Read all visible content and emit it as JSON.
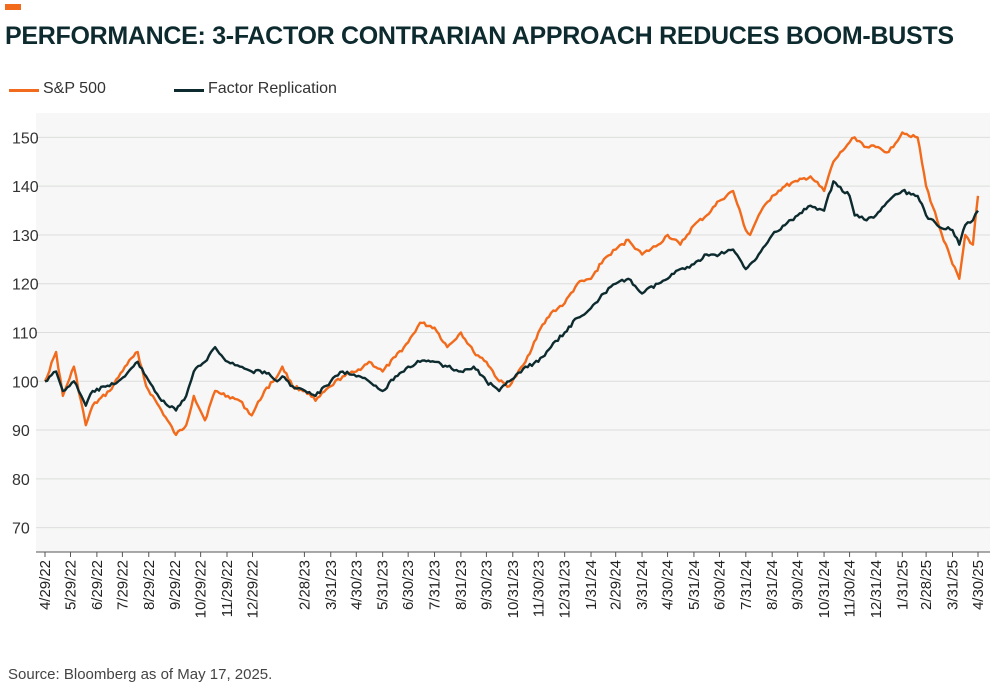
{
  "header": {
    "title": "PERFORMANCE: 3-FACTOR CONTRARIAN APPROACH REDUCES BOOM-BUSTS"
  },
  "footer": {
    "source": "Source: Bloomberg as of May 17, 2025."
  },
  "colors": {
    "accent": "#f26b1d",
    "sp500": "#f26b1d",
    "factor": "#0d2b2f",
    "plot_bg": "#f6f7f6",
    "grid": "#dcdedc"
  },
  "chart_data": {
    "type": "line",
    "title": "PERFORMANCE: 3-FACTOR CONTRARIAN APPROACH REDUCES BOOM-BUSTS",
    "xlabel": "",
    "ylabel": "",
    "ylim": [
      65,
      155
    ],
    "yticks": [
      70,
      80,
      90,
      100,
      110,
      120,
      130,
      140,
      150
    ],
    "xticks": [
      "4/29/22",
      "5/29/22",
      "6/29/22",
      "7/29/22",
      "8/29/22",
      "9/29/22",
      "10/29/22",
      "11/29/22",
      "12/29/22",
      "2/28/23",
      "3/31/23",
      "4/30/23",
      "5/31/23",
      "6/30/23",
      "7/31/23",
      "8/31/23",
      "9/30/23",
      "10/31/23",
      "11/30/23",
      "12/31/23",
      "1/31/24",
      "2/29/24",
      "3/31/24",
      "4/30/24",
      "5/31/24",
      "6/30/24",
      "7/31/24",
      "8/31/24",
      "9/30/24",
      "10/31/24",
      "11/30/24",
      "12/31/24",
      "1/31/25",
      "2/28/25",
      "3/31/25",
      "4/30/25"
    ],
    "legend_position": "top-left",
    "grid": "horizontal",
    "series": [
      {
        "name": "S&P 500",
        "color": "#f26b1d",
        "x": [
          "4/29/22",
          "5/12/22",
          "5/20/22",
          "6/2/22",
          "6/16/22",
          "6/24/22",
          "7/14/22",
          "8/1/22",
          "8/16/22",
          "8/26/22",
          "9/13/22",
          "9/30/22",
          "10/12/22",
          "10/21/22",
          "11/3/22",
          "11/15/22",
          "11/30/22",
          "12/14/22",
          "12/28/22",
          "1/12/23",
          "1/27/23",
          "2/2/23",
          "2/14/23",
          "3/1/23",
          "3/13/23",
          "3/31/23",
          "4/14/23",
          "4/30/23",
          "5/15/23",
          "5/31/23",
          "6/15/23",
          "6/30/23",
          "7/14/23",
          "7/31/23",
          "8/15/23",
          "8/31/23",
          "9/15/23",
          "9/30/23",
          "10/15/23",
          "10/27/23",
          "11/15/23",
          "11/30/23",
          "12/15/23",
          "12/31/23",
          "1/15/24",
          "1/31/24",
          "2/15/24",
          "2/29/24",
          "3/15/24",
          "3/31/24",
          "4/19/24",
          "4/30/24",
          "5/15/24",
          "5/31/24",
          "6/15/24",
          "6/30/24",
          "7/16/24",
          "7/31/24",
          "8/5/24",
          "8/15/24",
          "8/31/24",
          "9/15/24",
          "9/30/24",
          "10/15/24",
          "10/31/24",
          "11/11/24",
          "11/30/24",
          "12/6/24",
          "12/20/24",
          "12/31/24",
          "1/15/25",
          "1/31/25",
          "2/18/25",
          "2/28/25",
          "3/13/25",
          "3/31/25",
          "4/8/25",
          "4/15/25",
          "4/24/25",
          "4/30/25"
        ],
        "values": [
          100,
          106,
          97,
          103,
          91,
          95,
          98,
          103,
          106,
          99,
          94,
          89,
          91,
          97,
          92,
          98,
          97,
          96,
          93,
          98,
          101,
          103,
          99,
          98,
          96,
          99,
          101,
          102,
          104,
          102,
          105,
          108,
          112,
          111,
          107,
          110,
          106,
          104,
          100,
          99,
          104,
          110,
          114,
          116,
          120,
          121,
          125,
          127,
          129,
          126,
          128,
          130,
          128,
          132,
          134,
          137,
          139,
          131,
          130,
          134,
          138,
          140,
          141,
          142,
          139,
          145,
          149,
          150,
          148,
          148,
          147,
          151,
          150,
          140,
          133,
          124,
          121,
          130,
          128,
          138
        ]
      },
      {
        "name": "Factor Replication",
        "color": "#0d2b2f",
        "x": [
          "4/29/22",
          "5/12/22",
          "5/20/22",
          "6/2/22",
          "6/16/22",
          "6/24/22",
          "7/14/22",
          "8/1/22",
          "8/16/22",
          "8/26/22",
          "9/13/22",
          "9/30/22",
          "10/12/22",
          "10/21/22",
          "11/3/22",
          "11/15/22",
          "11/30/22",
          "12/14/22",
          "12/28/22",
          "1/12/23",
          "1/27/23",
          "2/2/23",
          "2/14/23",
          "3/1/23",
          "3/13/23",
          "3/31/23",
          "4/14/23",
          "4/30/23",
          "5/15/23",
          "5/31/23",
          "6/15/23",
          "6/30/23",
          "7/14/23",
          "7/31/23",
          "8/15/23",
          "8/31/23",
          "9/15/23",
          "9/30/23",
          "10/15/23",
          "10/27/23",
          "11/15/23",
          "11/30/23",
          "12/15/23",
          "12/31/23",
          "1/15/24",
          "1/31/24",
          "2/15/24",
          "2/29/24",
          "3/15/24",
          "3/31/24",
          "4/19/24",
          "4/30/24",
          "5/15/24",
          "5/31/24",
          "6/15/24",
          "6/30/24",
          "7/16/24",
          "7/31/24",
          "8/5/24",
          "8/15/24",
          "8/31/24",
          "9/15/24",
          "9/30/24",
          "10/15/24",
          "10/31/24",
          "11/11/24",
          "11/30/24",
          "12/6/24",
          "12/20/24",
          "12/31/24",
          "1/15/25",
          "1/31/25",
          "2/18/25",
          "2/28/25",
          "3/13/25",
          "3/31/25",
          "4/8/25",
          "4/15/25",
          "4/24/25",
          "4/30/25"
        ],
        "values": [
          100,
          102,
          98,
          100,
          95,
          98,
          99,
          101,
          104,
          101,
          96,
          94,
          97,
          102,
          104,
          107,
          104,
          103,
          102,
          102,
          100,
          101,
          99,
          98,
          97,
          100,
          102,
          101,
          100,
          98,
          101,
          103,
          104,
          104,
          103,
          102,
          103,
          100,
          98,
          100,
          103,
          104,
          107,
          110,
          113,
          115,
          118,
          120,
          121,
          118,
          120,
          121,
          123,
          124,
          126,
          126,
          127,
          123,
          124,
          126,
          130,
          132,
          134,
          136,
          135,
          141,
          138,
          134,
          133,
          134,
          137,
          139,
          138,
          134,
          132,
          131,
          128,
          132,
          133,
          135
        ]
      }
    ]
  }
}
